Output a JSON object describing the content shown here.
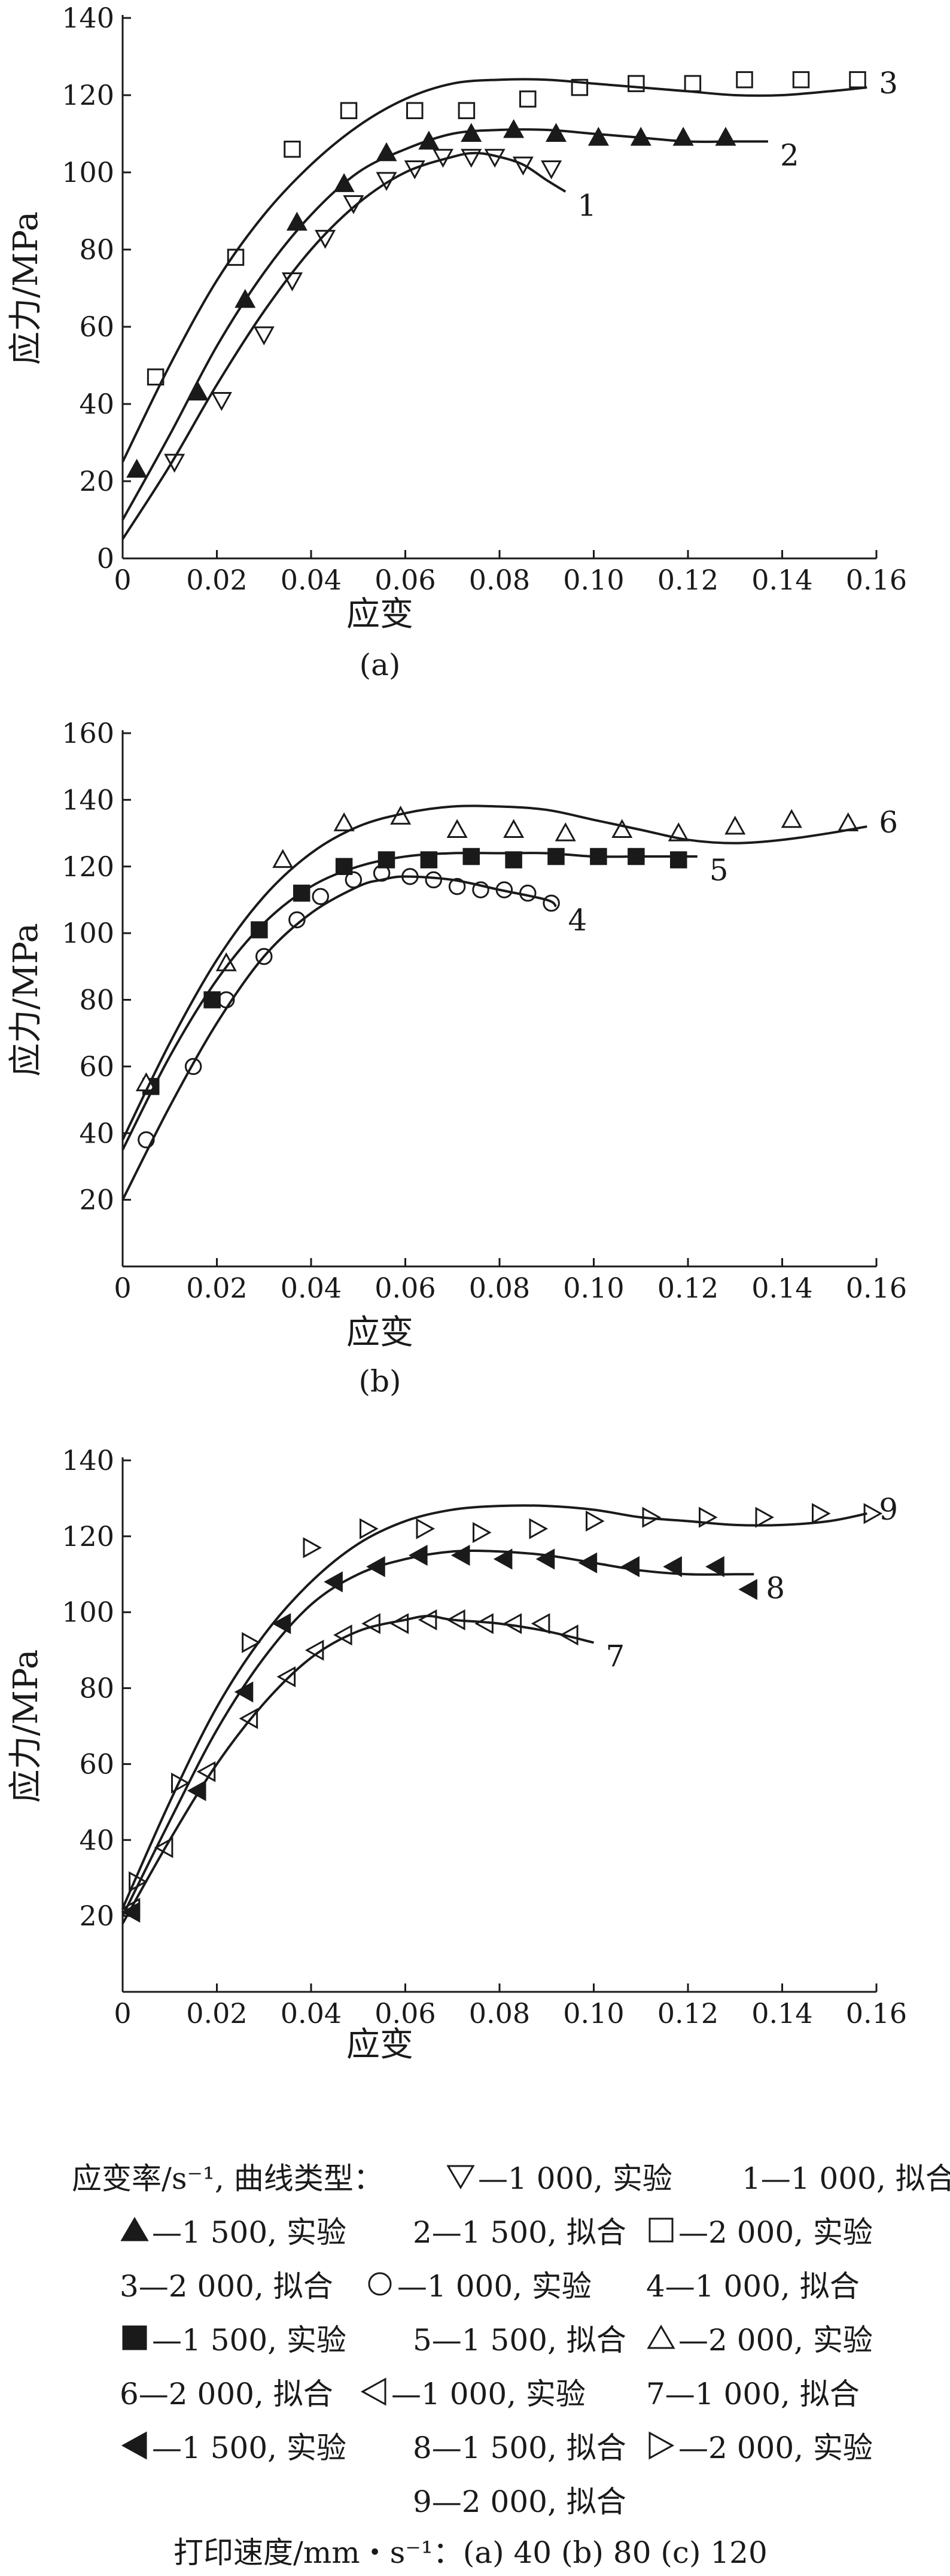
{
  "chart_data": [
    {
      "type": "line",
      "panel_label": "(a)",
      "xlabel": "应变",
      "ylabel": "应力/MPa",
      "xlim": [
        0,
        0.16
      ],
      "ylim": [
        0,
        140
      ],
      "xticks": [
        "0",
        "0.02",
        "0.04",
        "0.06",
        "0.08",
        "0.10",
        "0.12",
        "0.14",
        "0.16"
      ],
      "yticks": [
        "0",
        "20",
        "40",
        "60",
        "80",
        "100",
        "120",
        "140"
      ],
      "series": [
        {
          "marker": "triangle-down-open",
          "x": [
            0.011,
            0.021,
            0.03,
            0.036,
            0.043,
            0.049,
            0.056,
            0.062,
            0.068,
            0.074,
            0.079,
            0.085,
            0.091
          ],
          "y": [
            25,
            41,
            58,
            72,
            83,
            92,
            98,
            101,
            104,
            104,
            104,
            102,
            101
          ]
        },
        {
          "marker": "triangle-up-filled",
          "x": [
            0.003,
            0.016,
            0.026,
            0.037,
            0.047,
            0.056,
            0.065,
            0.074,
            0.083,
            0.092,
            0.101,
            0.11,
            0.119,
            0.128
          ],
          "y": [
            23,
            43,
            67,
            87,
            97,
            105,
            108,
            110,
            111,
            110,
            109,
            109,
            109,
            109
          ]
        },
        {
          "marker": "square-open",
          "x": [
            0.007,
            0.024,
            0.036,
            0.048,
            0.062,
            0.073,
            0.086,
            0.097,
            0.109,
            0.121,
            0.132,
            0.144,
            0.156
          ],
          "y": [
            47,
            78,
            106,
            116,
            116,
            116,
            119,
            122,
            123,
            123,
            124,
            124,
            124
          ]
        },
        {
          "label": "1",
          "x": [
            0,
            0.01,
            0.02,
            0.03,
            0.04,
            0.05,
            0.06,
            0.07,
            0.075,
            0.08,
            0.085,
            0.09,
            0.094
          ],
          "y": [
            5,
            24,
            45,
            64,
            80,
            92,
            100,
            104,
            105,
            104,
            102,
            98,
            95
          ]
        },
        {
          "label": "2",
          "x": [
            0,
            0.01,
            0.02,
            0.03,
            0.04,
            0.05,
            0.06,
            0.07,
            0.08,
            0.09,
            0.1,
            0.11,
            0.12,
            0.13,
            0.137
          ],
          "y": [
            10,
            32,
            55,
            74,
            89,
            100,
            106,
            110,
            111,
            111,
            110,
            109,
            108,
            108,
            108
          ]
        },
        {
          "label": "3",
          "x": [
            0,
            0.01,
            0.02,
            0.03,
            0.04,
            0.05,
            0.06,
            0.07,
            0.08,
            0.09,
            0.1,
            0.11,
            0.12,
            0.13,
            0.14,
            0.15,
            0.158
          ],
          "y": [
            25,
            50,
            72,
            89,
            102,
            112,
            119,
            123,
            124,
            124,
            123,
            122,
            121,
            120,
            120,
            121,
            122
          ]
        }
      ]
    },
    {
      "type": "line",
      "panel_label": "(b)",
      "xlabel": "应变",
      "ylabel": "应力/MPa",
      "xlim": [
        0,
        0.16
      ],
      "ylim": [
        0,
        160
      ],
      "xticks": [
        "0",
        "0.02",
        "0.04",
        "0.06",
        "0.08",
        "0.10",
        "0.12",
        "0.14",
        "0.16"
      ],
      "yticks": [
        "20",
        "40",
        "60",
        "80",
        "100",
        "120",
        "140",
        "160"
      ],
      "series": [
        {
          "marker": "circle-open",
          "x": [
            0.005,
            0.015,
            0.022,
            0.03,
            0.037,
            0.042,
            0.049,
            0.055,
            0.061,
            0.066,
            0.071,
            0.076,
            0.081,
            0.086,
            0.091
          ],
          "y": [
            38,
            60,
            80,
            93,
            104,
            111,
            116,
            118,
            117,
            116,
            114,
            113,
            113,
            112,
            109
          ]
        },
        {
          "marker": "square-filled",
          "x": [
            0.006,
            0.019,
            0.029,
            0.038,
            0.047,
            0.056,
            0.065,
            0.074,
            0.083,
            0.092,
            0.101,
            0.109,
            0.118
          ],
          "y": [
            54,
            80,
            101,
            112,
            120,
            122,
            122,
            123,
            122,
            123,
            123,
            123,
            122
          ]
        },
        {
          "marker": "triangle-up-open",
          "x": [
            0.005,
            0.022,
            0.034,
            0.047,
            0.059,
            0.071,
            0.083,
            0.094,
            0.106,
            0.118,
            0.13,
            0.142,
            0.154
          ],
          "y": [
            55,
            91,
            122,
            133,
            135,
            131,
            131,
            130,
            131,
            130,
            132,
            134,
            133
          ]
        },
        {
          "label": "4",
          "x": [
            0,
            0.01,
            0.02,
            0.03,
            0.04,
            0.05,
            0.055,
            0.06,
            0.07,
            0.08,
            0.09,
            0.092
          ],
          "y": [
            20,
            48,
            73,
            93,
            106,
            114,
            116,
            117,
            116,
            113,
            110,
            108
          ]
        },
        {
          "label": "5",
          "x": [
            0,
            0.01,
            0.02,
            0.03,
            0.04,
            0.05,
            0.06,
            0.07,
            0.08,
            0.09,
            0.1,
            0.11,
            0.12,
            0.122
          ],
          "y": [
            35,
            63,
            86,
            103,
            114,
            120,
            123,
            124,
            124,
            124,
            123,
            123,
            123,
            123
          ]
        },
        {
          "label": "6",
          "x": [
            0,
            0.01,
            0.02,
            0.03,
            0.04,
            0.05,
            0.06,
            0.07,
            0.08,
            0.09,
            0.1,
            0.11,
            0.12,
            0.13,
            0.14,
            0.15,
            0.158
          ],
          "y": [
            38,
            67,
            92,
            111,
            124,
            132,
            136,
            138,
            138,
            137,
            134,
            131,
            128,
            127,
            128,
            130,
            132
          ]
        }
      ]
    },
    {
      "type": "line",
      "panel_label": "(c)",
      "xlabel": "应变",
      "ylabel": "应力/MPa",
      "xlim": [
        0,
        0.16
      ],
      "ylim": [
        0,
        140
      ],
      "xticks": [
        "0",
        "0.02",
        "0.04",
        "0.06",
        "0.08",
        "0.10",
        "0.12",
        "0.14",
        "0.16"
      ],
      "yticks": [
        "20",
        "40",
        "60",
        "80",
        "100",
        "120",
        "140"
      ],
      "series": [
        {
          "marker": "triangle-left-open",
          "x": [
            0.002,
            0.009,
            0.018,
            0.027,
            0.035,
            0.041,
            0.047,
            0.053,
            0.059,
            0.065,
            0.071,
            0.077,
            0.083,
            0.089,
            0.095
          ],
          "y": [
            22,
            38,
            58,
            72,
            83,
            90,
            94,
            97,
            97,
            98,
            98,
            97,
            97,
            97,
            94
          ]
        },
        {
          "marker": "triangle-left-filled",
          "x": [
            0.002,
            0.016,
            0.026,
            0.034,
            0.045,
            0.054,
            0.063,
            0.072,
            0.081,
            0.09,
            0.099,
            0.108,
            0.117,
            0.126,
            0.133
          ],
          "y": [
            21,
            53,
            79,
            97,
            108,
            112,
            115,
            115,
            114,
            114,
            113,
            112,
            112,
            112,
            106
          ]
        },
        {
          "marker": "triangle-right-open",
          "x": [
            0.003,
            0.012,
            0.027,
            0.04,
            0.052,
            0.064,
            0.076,
            0.088,
            0.1,
            0.112,
            0.124,
            0.136,
            0.148,
            0.159
          ],
          "y": [
            29,
            55,
            92,
            117,
            122,
            122,
            121,
            122,
            124,
            125,
            125,
            125,
            126,
            126
          ]
        },
        {
          "label": "7",
          "x": [
            0,
            0.01,
            0.02,
            0.03,
            0.04,
            0.05,
            0.06,
            0.065,
            0.07,
            0.08,
            0.09,
            0.1
          ],
          "y": [
            18,
            40,
            60,
            76,
            88,
            95,
            98,
            99,
            98,
            97,
            95,
            92
          ]
        },
        {
          "label": "8",
          "x": [
            0,
            0.01,
            0.02,
            0.03,
            0.04,
            0.05,
            0.06,
            0.07,
            0.08,
            0.09,
            0.1,
            0.11,
            0.12,
            0.13,
            0.134
          ],
          "y": [
            20,
            45,
            69,
            88,
            102,
            110,
            114,
            116,
            116,
            115,
            113,
            111,
            110,
            110,
            110
          ]
        },
        {
          "label": "9",
          "x": [
            0,
            0.01,
            0.02,
            0.03,
            0.04,
            0.05,
            0.06,
            0.07,
            0.08,
            0.09,
            0.1,
            0.11,
            0.12,
            0.13,
            0.14,
            0.15,
            0.158
          ],
          "y": [
            22,
            50,
            75,
            94,
            108,
            118,
            124,
            127,
            128,
            128,
            127,
            125,
            124,
            123,
            123,
            124,
            126
          ]
        }
      ]
    }
  ],
  "legend": {
    "heading": "应变率/s⁻¹, 曲线类型：",
    "entries": [
      {
        "marker": "triangle-down-open",
        "text": "—1 000, 实验"
      },
      {
        "marker": "",
        "text": "1—1 000, 拟合"
      },
      {
        "marker": "triangle-up-filled",
        "text": "—1 500, 实验"
      },
      {
        "marker": "",
        "text": "2—1 500, 拟合"
      },
      {
        "marker": "square-open",
        "text": "—2 000, 实验"
      },
      {
        "marker": "",
        "text": "3—2 000, 拟合"
      },
      {
        "marker": "circle-open",
        "text": "—1 000, 实验"
      },
      {
        "marker": "",
        "text": "4—1 000, 拟合"
      },
      {
        "marker": "square-filled",
        "text": "—1 500, 实验"
      },
      {
        "marker": "",
        "text": "5—1 500, 拟合"
      },
      {
        "marker": "triangle-up-open",
        "text": "—2 000, 实验"
      },
      {
        "marker": "",
        "text": "6—2 000, 拟合"
      },
      {
        "marker": "triangle-left-open",
        "text": "—1 000, 实验"
      },
      {
        "marker": "",
        "text": "7—1 000, 拟合"
      },
      {
        "marker": "triangle-left-filled",
        "text": "—1 500, 实验"
      },
      {
        "marker": "",
        "text": "8—1 500, 拟合"
      },
      {
        "marker": "triangle-right-open",
        "text": "—2 000, 实验"
      },
      {
        "marker": "",
        "text": "9—2 000, 拟合"
      }
    ],
    "footer": "打印速度/mm・s⁻¹：(a) 40   (b) 80   (c) 120"
  }
}
